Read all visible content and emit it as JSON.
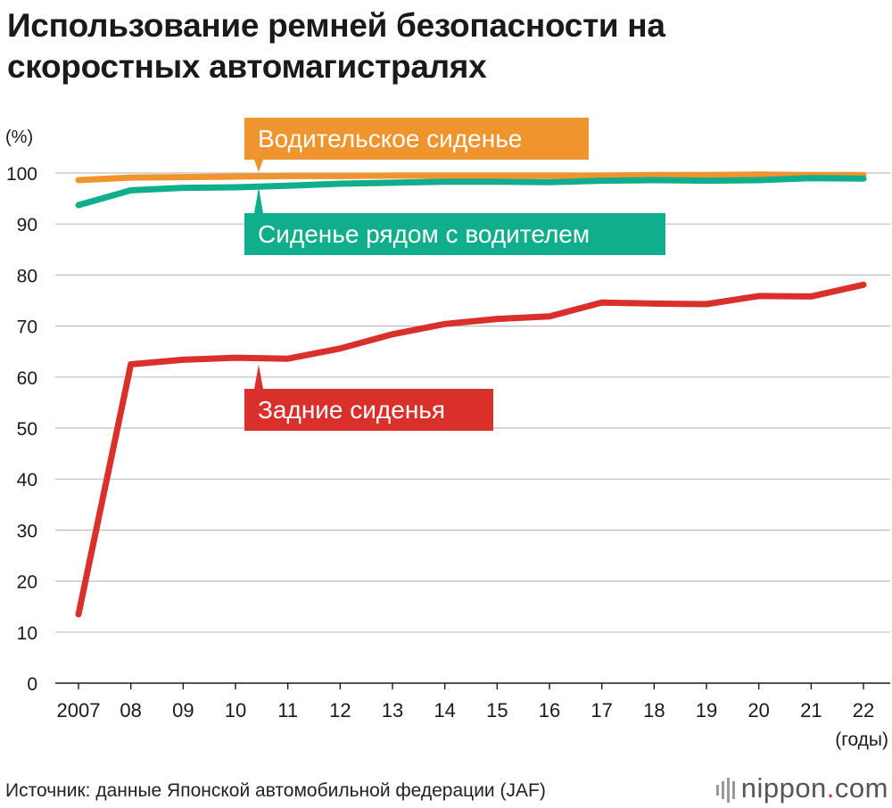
{
  "title_line1": "Использование ремней безопасности на",
  "title_line2": "скоростных автомагистралях",
  "source": "Источник: данные Японской автомобильной федерации (JAF)",
  "logo": {
    "name": "nippon",
    "dot": ".",
    "tld": "com"
  },
  "chart_data": {
    "type": "line",
    "title": "Использование ремней безопасности на скоростных автомагистралях",
    "y_unit": "(%)",
    "x_unit": "(годы)",
    "ylim": [
      0,
      100
    ],
    "yticks": [
      0,
      10,
      20,
      30,
      40,
      50,
      60,
      70,
      80,
      90,
      100
    ],
    "grid": true,
    "x": [
      "2007",
      "08",
      "09",
      "10",
      "11",
      "12",
      "13",
      "14",
      "15",
      "16",
      "17",
      "18",
      "19",
      "20",
      "21",
      "22"
    ],
    "series": [
      {
        "name": "Водительское сиденье",
        "color": "#f0952d",
        "values": [
          98.6,
          99.1,
          99.2,
          99.3,
          99.4,
          99.4,
          99.5,
          99.5,
          99.5,
          99.5,
          99.5,
          99.6,
          99.6,
          99.7,
          99.6,
          99.6
        ]
      },
      {
        "name": "Сиденье рядом с водителем",
        "color": "#10ae8c",
        "values": [
          93.7,
          96.6,
          97.1,
          97.2,
          97.5,
          97.9,
          98.1,
          98.3,
          98.3,
          98.2,
          98.5,
          98.6,
          98.5,
          98.6,
          99.0,
          98.9
        ]
      },
      {
        "name": "Задние сиденья",
        "color": "#d9302c",
        "values": [
          13.5,
          62.5,
          63.4,
          63.8,
          63.6,
          65.6,
          68.4,
          70.4,
          71.4,
          71.9,
          74.6,
          74.4,
          74.3,
          75.9,
          75.8,
          78.1
        ]
      }
    ]
  }
}
